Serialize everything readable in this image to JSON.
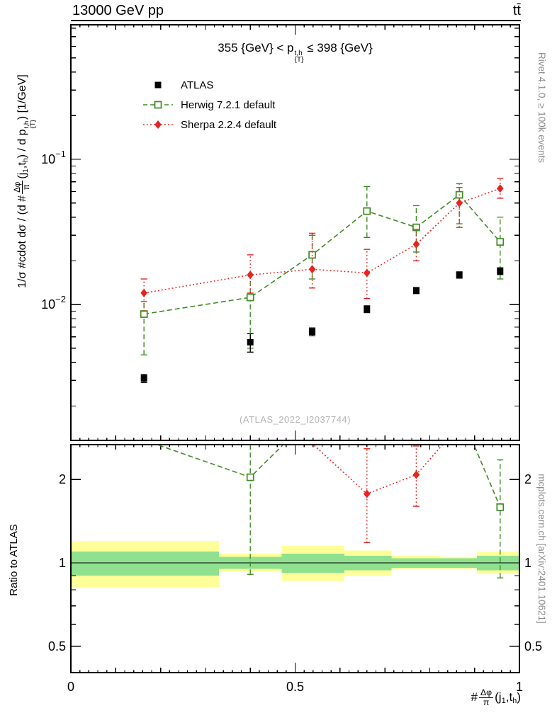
{
  "header": {
    "left": "13000 GeV pp",
    "right": "tt̄"
  },
  "side_texts": {
    "top_right": "Rivet 4.1.0, ≥ 100k events",
    "bottom_right": "mcplots.cern.ch [arXiv:2401.10621]"
  },
  "watermark": "(ATLAS_2022_I2037744)",
  "panel_title": {
    "p1": "355 {GeV} < p",
    "sup": "t,h",
    "sub": "{T}",
    "p2": " ≤ 398 {GeV}"
  },
  "labels": {
    "y_main": {
      "p1": "1/σ #cdot dσ / (d #",
      "frac_num": "Δφ",
      "frac_den": "π",
      "p2": "(j",
      "sub1": "1",
      "p3": ",t",
      "sub2": "h",
      "p4": ") / d p",
      "sup3": "t,h",
      "sub3": "{T}",
      "p5": ") [1/GeV]"
    },
    "y_ratio": "Ratio to ATLAS",
    "x": {
      "p1": "#",
      "frac_num": "Δφ",
      "frac_den": "π",
      "p2": "(j",
      "sub1": "1",
      "p3": ",t",
      "sub2": "h",
      "p4": ")"
    }
  },
  "legend": {
    "items": [
      {
        "label": "ATLAS",
        "marker": "filled-square",
        "color": "#000000",
        "line": "none"
      },
      {
        "label": "Herwig 7.2.1 default",
        "marker": "open-square",
        "color": "#3d8c22",
        "line": "dashed"
      },
      {
        "label": "Sherpa 2.2.4 default",
        "marker": "filled-diamond",
        "color": "#e8231f",
        "line": "dotted"
      }
    ]
  },
  "chart_data": {
    "type": "line",
    "title": "355 {GeV} < p_{T}^{t,h} ≤ 398 {GeV}",
    "xlabel": "#Δφ/π(j_1,t_h)",
    "ylabel": "1/σ #cdot dσ / (d #Δφ/π(j_1,t_h) / d p_{T}^{t,h}) [1/GeV]",
    "ratio_ylabel": "Ratio to ATLAS",
    "x": [
      0.163,
      0.4,
      0.538,
      0.66,
      0.77,
      0.866,
      0.957
    ],
    "bin_edges": [
      0,
      0.33,
      0.47,
      0.61,
      0.715,
      0.825,
      0.905,
      1
    ],
    "series": [
      {
        "name": "ATLAS",
        "color": "#000000",
        "marker": "filled-square",
        "line": "none",
        "values": [
          0.0031,
          0.0055,
          0.0065,
          0.0093,
          0.0125,
          0.016,
          0.017
        ],
        "err_lo": [
          0.0029,
          0.0047,
          0.0061,
          0.0088,
          0.0119,
          0.0152,
          0.0161
        ],
        "err_hi": [
          0.0033,
          0.0063,
          0.0069,
          0.0098,
          0.0131,
          0.0168,
          0.0179
        ]
      },
      {
        "name": "Herwig 7.2.1 default",
        "color": "#3d8c22",
        "marker": "open-square",
        "line": "dashed",
        "values": [
          0.0086,
          0.0112,
          0.022,
          0.044,
          0.034,
          0.057,
          0.027
        ],
        "err_lo": [
          0.0045,
          0.005,
          0.015,
          0.029,
          0.023,
          0.036,
          0.015
        ],
        "err_hi": [
          0.0105,
          0.016,
          0.03,
          0.065,
          0.048,
          0.068,
          0.04
        ]
      },
      {
        "name": "Sherpa 2.2.4 default",
        "color": "#e8231f",
        "marker": "filled-diamond",
        "line": "dotted",
        "values": [
          0.012,
          0.016,
          0.0175,
          0.0165,
          0.026,
          0.05,
          0.063
        ],
        "err_lo": [
          0.009,
          0.012,
          0.013,
          0.011,
          0.02,
          0.034,
          0.054
        ],
        "err_hi": [
          0.015,
          0.022,
          0.031,
          0.024,
          0.033,
          0.064,
          0.074
        ]
      }
    ],
    "main_axis": {
      "yscale": "log",
      "ylim": [
        0.00116,
        0.845
      ],
      "yticks": [
        {
          "value": 0.1,
          "base": "10",
          "exp": "−1"
        },
        {
          "value": 0.01,
          "base": "10",
          "exp": "−2"
        }
      ],
      "xlim": [
        0,
        1
      ],
      "xticks": [
        0,
        0.5,
        1
      ]
    },
    "ratio_axis": {
      "yscale": "log",
      "ylim": [
        0.402,
        2.67
      ],
      "yticks": [
        2,
        1,
        0.5
      ]
    },
    "band_colors": {
      "outer": "#ffff99",
      "inner": "#8fe18f"
    },
    "ratio_bands": [
      {
        "x0": 0,
        "x1": 0.33,
        "outer": [
          0.82,
          1.2
        ],
        "inner": [
          0.9,
          1.1
        ]
      },
      {
        "x0": 0.33,
        "x1": 0.47,
        "outer": [
          0.93,
          1.08
        ],
        "inner": [
          0.95,
          1.05
        ]
      },
      {
        "x0": 0.47,
        "x1": 0.61,
        "outer": [
          0.86,
          1.15
        ],
        "inner": [
          0.92,
          1.08
        ]
      },
      {
        "x0": 0.61,
        "x1": 0.715,
        "outer": [
          0.9,
          1.11
        ],
        "inner": [
          0.94,
          1.06
        ]
      },
      {
        "x0": 0.715,
        "x1": 0.825,
        "outer": [
          0.95,
          1.06
        ],
        "inner": [
          0.96,
          1.04
        ]
      },
      {
        "x0": 0.825,
        "x1": 0.905,
        "outer": [
          0.95,
          1.05
        ],
        "inner": [
          0.96,
          1.04
        ]
      },
      {
        "x0": 0.905,
        "x1": 1,
        "outer": [
          0.91,
          1.1
        ],
        "inner": [
          0.94,
          1.06
        ]
      }
    ],
    "reference_line": 1
  }
}
